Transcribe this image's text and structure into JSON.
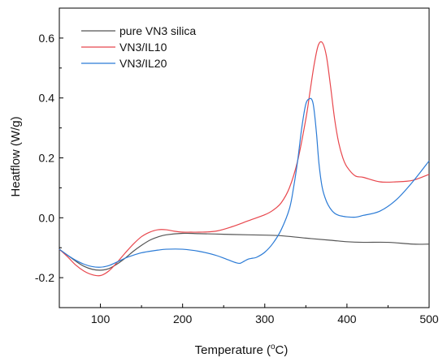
{
  "chart_data": {
    "type": "line",
    "xlabel": "Temperature (",
    "xlabel_sup": "o",
    "xlabel_end": "C)",
    "ylabel": "Heatflow (W/g)",
    "xlim": [
      50,
      500
    ],
    "ylim": [
      -0.3,
      0.7
    ],
    "xticks": [
      100,
      200,
      300,
      400,
      500
    ],
    "xtick_labels": [
      "100",
      "200",
      "300",
      "400",
      "500"
    ],
    "yticks": [
      -0.2,
      0.0,
      0.2,
      0.4,
      0.6
    ],
    "ytick_labels": [
      "-0.2",
      "0.0",
      "0.2",
      "0.4",
      "0.6"
    ],
    "legend_position": "top-left",
    "grid": false,
    "series": [
      {
        "name": "pure VN3 silica",
        "color": "#555555",
        "x": [
          50,
          60,
          70,
          80,
          90,
          100,
          110,
          120,
          130,
          140,
          150,
          160,
          170,
          180,
          200,
          220,
          250,
          280,
          300,
          320,
          350,
          380,
          400,
          420,
          450,
          480,
          500
        ],
        "y": [
          -0.105,
          -0.125,
          -0.145,
          -0.162,
          -0.172,
          -0.175,
          -0.17,
          -0.155,
          -0.135,
          -0.112,
          -0.092,
          -0.075,
          -0.064,
          -0.057,
          -0.052,
          -0.053,
          -0.055,
          -0.057,
          -0.058,
          -0.06,
          -0.068,
          -0.075,
          -0.08,
          -0.082,
          -0.082,
          -0.088,
          -0.088
        ]
      },
      {
        "name": "VN3/IL10",
        "color": "#e8474d",
        "x": [
          50,
          60,
          70,
          80,
          90,
          100,
          110,
          120,
          130,
          140,
          150,
          160,
          170,
          180,
          190,
          200,
          210,
          220,
          240,
          260,
          280,
          300,
          310,
          320,
          330,
          340,
          350,
          355,
          360,
          365,
          370,
          375,
          380,
          385,
          390,
          395,
          400,
          410,
          420,
          440,
          460,
          480,
          500
        ],
        "y": [
          -0.105,
          -0.13,
          -0.158,
          -0.178,
          -0.19,
          -0.193,
          -0.178,
          -0.15,
          -0.118,
          -0.088,
          -0.063,
          -0.048,
          -0.04,
          -0.04,
          -0.045,
          -0.048,
          -0.048,
          -0.048,
          -0.045,
          -0.03,
          -0.01,
          0.01,
          0.025,
          0.05,
          0.1,
          0.19,
          0.33,
          0.42,
          0.51,
          0.575,
          0.585,
          0.54,
          0.44,
          0.33,
          0.25,
          0.2,
          0.17,
          0.14,
          0.135,
          0.12,
          0.12,
          0.125,
          0.145
        ]
      },
      {
        "name": "VN3/IL20",
        "color": "#2b7bd6",
        "x": [
          50,
          60,
          70,
          80,
          90,
          100,
          110,
          120,
          130,
          140,
          150,
          160,
          170,
          180,
          200,
          220,
          240,
          255,
          265,
          270,
          275,
          280,
          285,
          290,
          300,
          310,
          320,
          330,
          335,
          340,
          345,
          350,
          355,
          358,
          360,
          363,
          366,
          370,
          375,
          380,
          385,
          390,
          395,
          400,
          410,
          420,
          440,
          460,
          480,
          500
        ],
        "y": [
          -0.105,
          -0.125,
          -0.142,
          -0.155,
          -0.163,
          -0.165,
          -0.16,
          -0.148,
          -0.135,
          -0.125,
          -0.117,
          -0.112,
          -0.108,
          -0.105,
          -0.105,
          -0.112,
          -0.125,
          -0.14,
          -0.15,
          -0.152,
          -0.145,
          -0.138,
          -0.135,
          -0.132,
          -0.115,
          -0.085,
          -0.04,
          0.03,
          0.1,
          0.19,
          0.3,
          0.38,
          0.398,
          0.39,
          0.36,
          0.28,
          0.18,
          0.1,
          0.055,
          0.03,
          0.015,
          0.008,
          0.005,
          0.003,
          0.002,
          0.008,
          0.022,
          0.06,
          0.12,
          0.19
        ]
      }
    ]
  }
}
